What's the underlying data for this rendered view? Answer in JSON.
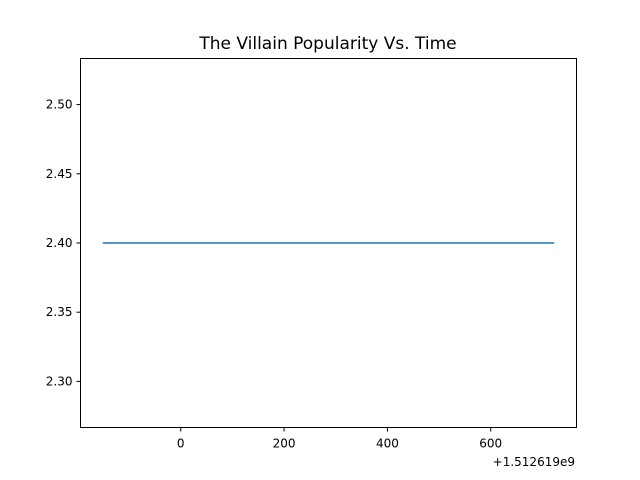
{
  "chart_data": {
    "type": "line",
    "title": "The Villain Popularity Vs. Time",
    "xlabel": "",
    "ylabel": "",
    "x_offset_label": "+1.512619e9",
    "x_offset": 1512619000,
    "xlim": [
      -194,
      766
    ],
    "ylim": [
      2.2667,
      2.5333
    ],
    "xticks": [
      0,
      200,
      400,
      600
    ],
    "xtick_labels": [
      "0",
      "200",
      "400",
      "600"
    ],
    "yticks": [
      2.3,
      2.35,
      2.4,
      2.45,
      2.5
    ],
    "ytick_labels": [
      "2.30",
      "2.35",
      "2.40",
      "2.45",
      "2.50"
    ],
    "grid": false,
    "series": [
      {
        "color": "#1f77b4",
        "x": [
          -151,
          723
        ],
        "y": [
          2.4,
          2.4
        ]
      }
    ]
  }
}
